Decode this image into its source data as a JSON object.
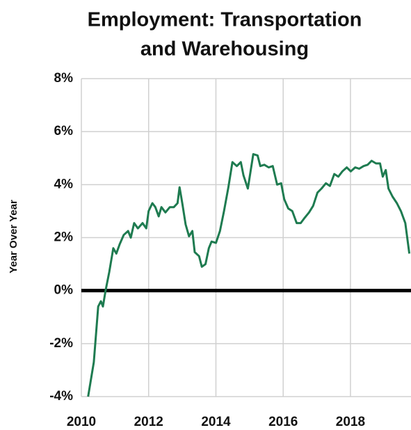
{
  "chart_data": {
    "type": "line",
    "title": [
      "Employment: Transportation",
      "and Warehousing"
    ],
    "ylabel": "Year Over Year",
    "xlim": [
      2010,
      2019.8
    ],
    "xticks": [
      2010,
      2012,
      2014,
      2016,
      2018
    ],
    "ylim": [
      -4,
      8
    ],
    "yticks": [
      {
        "value": -4,
        "label": "-4%"
      },
      {
        "value": -2,
        "label": "-2%"
      },
      {
        "value": 0,
        "label": "0%"
      },
      {
        "value": 2,
        "label": "2%"
      },
      {
        "value": 4,
        "label": "4%"
      },
      {
        "value": 6,
        "label": "6%"
      },
      {
        "value": 8,
        "label": "8%"
      }
    ],
    "grid": true,
    "zero_line": true,
    "series": [
      {
        "color": "#1e7b50",
        "x": [
          2010.2,
          2010.37,
          2010.5,
          2010.58,
          2010.64,
          2010.72,
          2010.83,
          2010.95,
          2011.04,
          2011.14,
          2011.26,
          2011.39,
          2011.47,
          2011.57,
          2011.68,
          2011.82,
          2011.93,
          2012.0,
          2012.11,
          2012.2,
          2012.3,
          2012.38,
          2012.5,
          2012.63,
          2012.75,
          2012.86,
          2012.92,
          2013.0,
          2013.1,
          2013.2,
          2013.3,
          2013.37,
          2013.5,
          2013.58,
          2013.69,
          2013.79,
          2013.87,
          2014.0,
          2014.12,
          2014.24,
          2014.37,
          2014.49,
          2014.62,
          2014.74,
          2014.82,
          2014.95,
          2015.03,
          2015.11,
          2015.24,
          2015.32,
          2015.44,
          2015.57,
          2015.69,
          2015.82,
          2015.94,
          2016.03,
          2016.15,
          2016.27,
          2016.4,
          2016.52,
          2016.64,
          2016.77,
          2016.89,
          2017.02,
          2017.14,
          2017.27,
          2017.39,
          2017.52,
          2017.64,
          2017.76,
          2017.89,
          2018.01,
          2018.14,
          2018.26,
          2018.39,
          2018.51,
          2018.63,
          2018.76,
          2018.88,
          2018.96,
          2019.05,
          2019.13,
          2019.25,
          2019.38,
          2019.5,
          2019.63,
          2019.75
        ],
        "values": [
          -4.0,
          -2.7,
          -0.6,
          -0.4,
          -0.6,
          0.0,
          0.7,
          1.6,
          1.4,
          1.75,
          2.1,
          2.25,
          2.0,
          2.55,
          2.35,
          2.55,
          2.35,
          3.0,
          3.3,
          3.15,
          2.8,
          3.15,
          2.95,
          3.15,
          3.15,
          3.3,
          3.9,
          3.3,
          2.5,
          2.05,
          2.25,
          1.45,
          1.3,
          0.9,
          1.0,
          1.6,
          1.85,
          1.8,
          2.25,
          3.0,
          3.9,
          4.85,
          4.7,
          4.85,
          4.35,
          3.85,
          4.5,
          5.15,
          5.1,
          4.7,
          4.75,
          4.65,
          4.7,
          4.0,
          4.05,
          3.45,
          3.1,
          3.0,
          2.55,
          2.55,
          2.75,
          2.95,
          3.2,
          3.7,
          3.85,
          4.05,
          3.95,
          4.4,
          4.3,
          4.5,
          4.65,
          4.5,
          4.65,
          4.6,
          4.7,
          4.75,
          4.9,
          4.8,
          4.8,
          4.3,
          4.55,
          3.85,
          3.55,
          3.3,
          3.0,
          2.55,
          1.4
        ]
      }
    ]
  }
}
